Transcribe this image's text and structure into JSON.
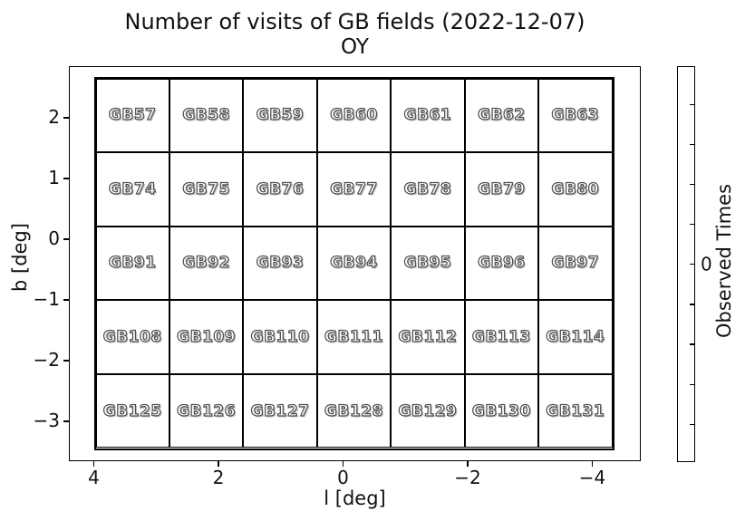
{
  "title": "Number of visits of GB fields (2022-12-07)",
  "subtitle": "OY",
  "axes": {
    "xlabel": "l [deg]",
    "ylabel": "b [deg]",
    "x_tick_labels": [
      "4",
      "2",
      "0",
      "−2",
      "−4"
    ],
    "y_tick_labels": [
      "2",
      "1",
      "0",
      "−1",
      "−2",
      "−3"
    ]
  },
  "colorbar": {
    "label": "Observed Times",
    "tick_label": "0",
    "fill_color": "#ffffff",
    "n_minor_ticks": 9
  },
  "chart_data": {
    "type": "heatmap",
    "title": "Number of visits of GB fields (2022-12-07)",
    "subtitle": "OY",
    "xlabel": "l [deg]",
    "ylabel": "b [deg]",
    "x_ticks": [
      4,
      2,
      0,
      -2,
      -4
    ],
    "y_ticks": [
      2,
      1,
      0,
      -1,
      -2,
      -3
    ],
    "x_axis_reversed": true,
    "grid_on": false,
    "n_rows": 5,
    "n_cols": 7,
    "cell_fill_color": "#ffffff",
    "cell_border_color": "#000000",
    "colorbar": {
      "label": "Observed Times",
      "tick_labels": [
        "0"
      ],
      "position": "right"
    },
    "rows": [
      {
        "fields": [
          "GB57",
          "GB58",
          "GB59",
          "GB60",
          "GB61",
          "GB62",
          "GB63"
        ],
        "visits": [
          0,
          0,
          0,
          0,
          0,
          0,
          0
        ]
      },
      {
        "fields": [
          "GB74",
          "GB75",
          "GB76",
          "GB77",
          "GB78",
          "GB79",
          "GB80"
        ],
        "visits": [
          0,
          0,
          0,
          0,
          0,
          0,
          0
        ]
      },
      {
        "fields": [
          "GB91",
          "GB92",
          "GB93",
          "GB94",
          "GB95",
          "GB96",
          "GB97"
        ],
        "visits": [
          0,
          0,
          0,
          0,
          0,
          0,
          0
        ]
      },
      {
        "fields": [
          "GB108",
          "GB109",
          "GB110",
          "GB111",
          "GB112",
          "GB113",
          "GB114"
        ],
        "visits": [
          0,
          0,
          0,
          0,
          0,
          0,
          0
        ]
      },
      {
        "fields": [
          "GB125",
          "GB126",
          "GB127",
          "GB128",
          "GB129",
          "GB130",
          "GB131"
        ],
        "visits": [
          0,
          0,
          0,
          0,
          0,
          0,
          0
        ]
      }
    ]
  }
}
